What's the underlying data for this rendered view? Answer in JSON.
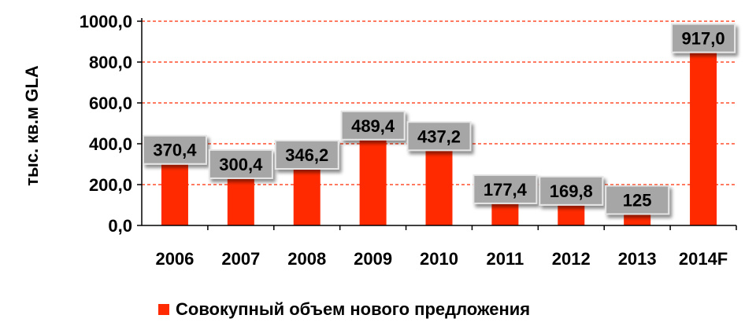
{
  "chart_data": {
    "type": "bar",
    "categories": [
      "2006",
      "2007",
      "2008",
      "2009",
      "2010",
      "2011",
      "2012",
      "2013",
      "2014F"
    ],
    "series": [
      {
        "name": "Совокупный объем нового предложения",
        "values": [
          370.4,
          300.4,
          346.2,
          489.4,
          437.2,
          177.4,
          169.8,
          125,
          917.0
        ],
        "labels": [
          "370,4",
          "300,4",
          "346,2",
          "489,4",
          "437,2",
          "177,4",
          "169,8",
          "125",
          "917,0"
        ]
      }
    ],
    "ylabel": "тыс. кв.м GLA",
    "xlabel": "",
    "ylim": [
      0,
      1000
    ],
    "yticks": [
      0,
      200,
      400,
      600,
      800,
      1000
    ],
    "ytick_labels": [
      "0,0",
      "200,0",
      "400,0",
      "600,0",
      "800,0",
      "1000,0"
    ],
    "grid": "horizontal dashed",
    "legend_position": "bottom",
    "bar_color": "#ff2a00",
    "grid_color": "#ff2a00",
    "label_box_color": "#a6a6a6"
  }
}
